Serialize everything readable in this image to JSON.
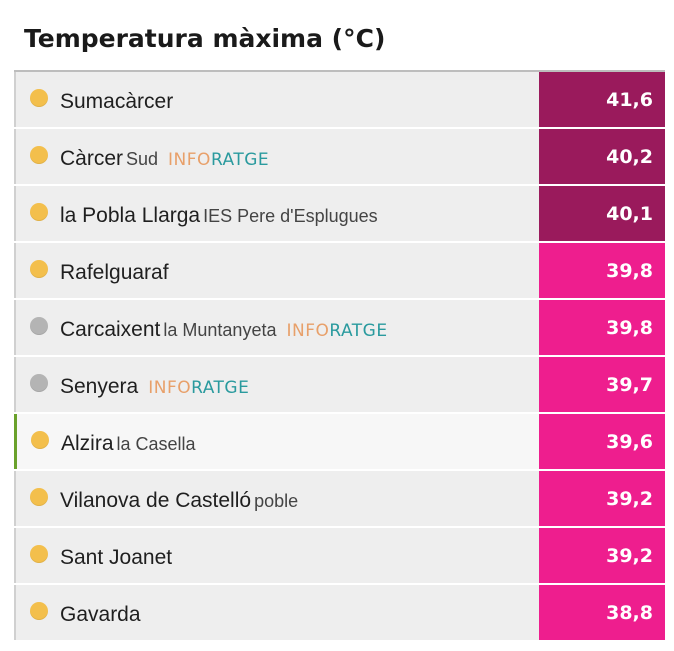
{
  "title": "Temperatura màxima (°C)",
  "badge_text": {
    "part1": "INFO",
    "part2": "RATGE"
  },
  "rows": [
    {
      "station": "Sumacàrcer",
      "sub": "",
      "badge": false,
      "value": "41,6",
      "status": "active",
      "value_color": "#9a1a5c"
    },
    {
      "station": "Càrcer",
      "sub": "Sud",
      "badge": true,
      "value": "40,2",
      "status": "active",
      "value_color": "#9a1a5c"
    },
    {
      "station": "la Pobla Llarga",
      "sub": "IES Pere d'Esplugues",
      "badge": false,
      "value": "40,1",
      "status": "active",
      "value_color": "#9a1a5c"
    },
    {
      "station": "Rafelguaraf",
      "sub": "",
      "badge": false,
      "value": "39,8",
      "status": "active",
      "value_color": "#ee1e8e"
    },
    {
      "station": "Carcaixent",
      "sub": "la Muntanyeta",
      "badge": true,
      "value": "39,8",
      "status": "inactive",
      "value_color": "#ee1e8e"
    },
    {
      "station": "Senyera",
      "sub": "",
      "badge": true,
      "value": "39,7",
      "status": "inactive",
      "value_color": "#ee1e8e"
    },
    {
      "station": "Alzira",
      "sub": "la Casella",
      "badge": false,
      "value": "39,6",
      "status": "active",
      "value_color": "#ee1e8e",
      "highlight": true
    },
    {
      "station": "Vilanova de Castelló",
      "sub": "poble",
      "badge": false,
      "value": "39,2",
      "status": "active",
      "value_color": "#ee1e8e"
    },
    {
      "station": "Sant Joanet",
      "sub": "",
      "badge": false,
      "value": "39,2",
      "status": "active",
      "value_color": "#ee1e8e"
    },
    {
      "station": "Gavarda",
      "sub": "",
      "badge": false,
      "value": "38,8",
      "status": "active",
      "value_color": "#ee1e8e"
    }
  ],
  "status_colors": {
    "active": "#f3bf4c",
    "inactive": "#b4b4b4"
  }
}
